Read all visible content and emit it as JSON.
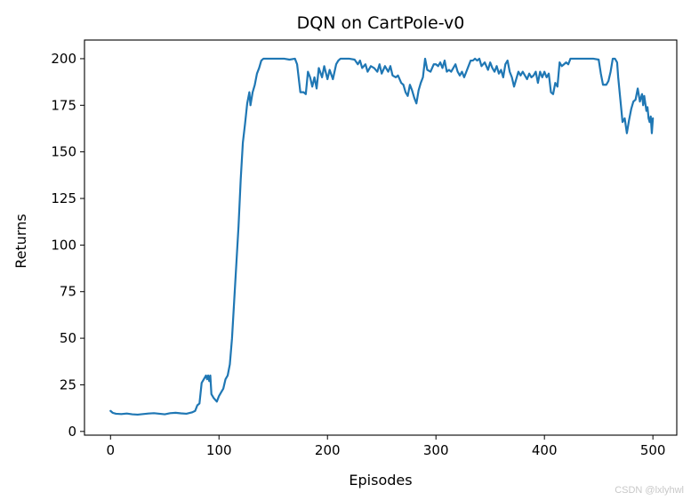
{
  "chart_data": {
    "type": "line",
    "title": "DQN on CartPole-v0",
    "xlabel": "Episodes",
    "ylabel": "Returns",
    "xlim": [
      -24,
      522
    ],
    "ylim": [
      -2,
      210
    ],
    "x_ticks": [
      0,
      100,
      200,
      300,
      400,
      500
    ],
    "y_ticks": [
      0,
      25,
      50,
      75,
      100,
      125,
      150,
      175,
      200
    ],
    "grid": false,
    "line_color": "#1f77b4",
    "series": [
      {
        "points": [
          [
            0,
            11
          ],
          [
            2,
            10
          ],
          [
            5,
            9.5
          ],
          [
            10,
            9.3
          ],
          [
            15,
            9.6
          ],
          [
            20,
            9.2
          ],
          [
            25,
            9.0
          ],
          [
            30,
            9.3
          ],
          [
            35,
            9.6
          ],
          [
            40,
            9.8
          ],
          [
            45,
            9.5
          ],
          [
            50,
            9.2
          ],
          [
            55,
            9.8
          ],
          [
            60,
            10.0
          ],
          [
            65,
            9.7
          ],
          [
            70,
            9.5
          ],
          [
            75,
            10.2
          ],
          [
            78,
            11
          ],
          [
            80,
            14
          ],
          [
            82,
            15
          ],
          [
            84,
            26
          ],
          [
            86,
            28
          ],
          [
            88,
            30
          ],
          [
            89,
            28
          ],
          [
            90,
            30
          ],
          [
            91,
            27
          ],
          [
            92,
            30
          ],
          [
            93,
            20
          ],
          [
            95,
            18
          ],
          [
            98,
            16
          ],
          [
            100,
            19
          ],
          [
            102,
            21
          ],
          [
            104,
            23
          ],
          [
            106,
            28
          ],
          [
            108,
            30
          ],
          [
            110,
            36
          ],
          [
            112,
            50
          ],
          [
            114,
            70
          ],
          [
            116,
            90
          ],
          [
            118,
            110
          ],
          [
            120,
            135
          ],
          [
            122,
            155
          ],
          [
            124,
            165
          ],
          [
            126,
            176
          ],
          [
            128,
            182
          ],
          [
            129,
            175
          ],
          [
            131,
            182
          ],
          [
            133,
            186
          ],
          [
            135,
            192
          ],
          [
            137,
            195
          ],
          [
            139,
            199
          ],
          [
            141,
            200
          ],
          [
            145,
            200
          ],
          [
            150,
            200
          ],
          [
            155,
            200
          ],
          [
            160,
            200
          ],
          [
            165,
            199.5
          ],
          [
            170,
            200
          ],
          [
            172,
            197
          ],
          [
            175,
            182
          ],
          [
            178,
            182
          ],
          [
            180,
            181
          ],
          [
            182,
            193
          ],
          [
            184,
            190
          ],
          [
            186,
            185
          ],
          [
            188,
            190
          ],
          [
            190,
            184
          ],
          [
            192,
            195
          ],
          [
            195,
            190
          ],
          [
            197,
            196
          ],
          [
            200,
            189
          ],
          [
            202,
            194
          ],
          [
            205,
            189
          ],
          [
            208,
            197
          ],
          [
            210,
            199
          ],
          [
            212,
            200
          ],
          [
            215,
            200
          ],
          [
            220,
            200
          ],
          [
            225,
            199.5
          ],
          [
            228,
            197
          ],
          [
            230,
            199
          ],
          [
            232,
            195
          ],
          [
            235,
            197
          ],
          [
            237,
            193
          ],
          [
            240,
            196
          ],
          [
            243,
            195
          ],
          [
            246,
            193
          ],
          [
            248,
            197
          ],
          [
            250,
            192
          ],
          [
            253,
            196
          ],
          [
            256,
            193
          ],
          [
            258,
            196
          ],
          [
            260,
            191
          ],
          [
            263,
            190
          ],
          [
            265,
            191
          ],
          [
            268,
            187
          ],
          [
            270,
            186
          ],
          [
            272,
            182
          ],
          [
            274,
            180
          ],
          [
            276,
            186
          ],
          [
            278,
            183
          ],
          [
            280,
            179
          ],
          [
            282,
            176
          ],
          [
            284,
            183
          ],
          [
            286,
            187
          ],
          [
            288,
            190
          ],
          [
            290,
            200
          ],
          [
            292,
            194
          ],
          [
            295,
            193
          ],
          [
            298,
            197
          ],
          [
            300,
            197
          ],
          [
            302,
            196
          ],
          [
            304,
            198
          ],
          [
            306,
            195
          ],
          [
            308,
            199
          ],
          [
            310,
            193
          ],
          [
            312,
            194
          ],
          [
            314,
            193
          ],
          [
            316,
            195
          ],
          [
            318,
            197
          ],
          [
            320,
            193
          ],
          [
            322,
            191
          ],
          [
            324,
            193
          ],
          [
            326,
            190
          ],
          [
            328,
            193
          ],
          [
            330,
            196
          ],
          [
            332,
            199
          ],
          [
            334,
            199
          ],
          [
            336,
            200
          ],
          [
            338,
            199
          ],
          [
            340,
            200
          ],
          [
            342,
            196
          ],
          [
            345,
            198
          ],
          [
            348,
            194
          ],
          [
            350,
            198
          ],
          [
            352,
            195
          ],
          [
            354,
            193
          ],
          [
            356,
            196
          ],
          [
            358,
            192
          ],
          [
            360,
            194
          ],
          [
            362,
            190
          ],
          [
            364,
            197
          ],
          [
            366,
            199
          ],
          [
            368,
            193
          ],
          [
            370,
            190
          ],
          [
            372,
            185
          ],
          [
            374,
            189
          ],
          [
            376,
            193
          ],
          [
            378,
            191
          ],
          [
            380,
            193
          ],
          [
            382,
            191
          ],
          [
            384,
            189
          ],
          [
            386,
            192
          ],
          [
            388,
            190
          ],
          [
            390,
            191
          ],
          [
            392,
            193
          ],
          [
            394,
            187
          ],
          [
            396,
            193
          ],
          [
            398,
            190
          ],
          [
            400,
            193
          ],
          [
            402,
            190
          ],
          [
            404,
            192
          ],
          [
            406,
            182
          ],
          [
            408,
            181
          ],
          [
            410,
            187
          ],
          [
            412,
            185
          ],
          [
            414,
            198
          ],
          [
            416,
            196
          ],
          [
            418,
            197
          ],
          [
            420,
            198
          ],
          [
            422,
            197
          ],
          [
            424,
            200
          ],
          [
            430,
            200
          ],
          [
            435,
            200
          ],
          [
            440,
            200
          ],
          [
            445,
            200
          ],
          [
            450,
            199.5
          ],
          [
            452,
            192
          ],
          [
            454,
            186
          ],
          [
            457,
            186
          ],
          [
            459,
            188
          ],
          [
            461,
            193
          ],
          [
            463,
            200
          ],
          [
            465,
            200
          ],
          [
            467,
            198
          ],
          [
            468,
            190
          ],
          [
            470,
            178
          ],
          [
            472,
            166
          ],
          [
            474,
            168
          ],
          [
            476,
            160
          ],
          [
            478,
            167
          ],
          [
            480,
            173
          ],
          [
            482,
            177
          ],
          [
            484,
            178
          ],
          [
            486,
            184
          ],
          [
            488,
            177
          ],
          [
            490,
            181
          ],
          [
            491,
            175
          ],
          [
            492,
            180
          ],
          [
            493,
            176
          ],
          [
            494,
            172
          ],
          [
            495,
            174
          ],
          [
            496,
            168
          ],
          [
            497,
            166
          ],
          [
            498,
            169
          ],
          [
            499,
            160
          ],
          [
            500,
            168
          ]
        ]
      }
    ]
  },
  "watermark": "CSDN @lxlyhwl"
}
